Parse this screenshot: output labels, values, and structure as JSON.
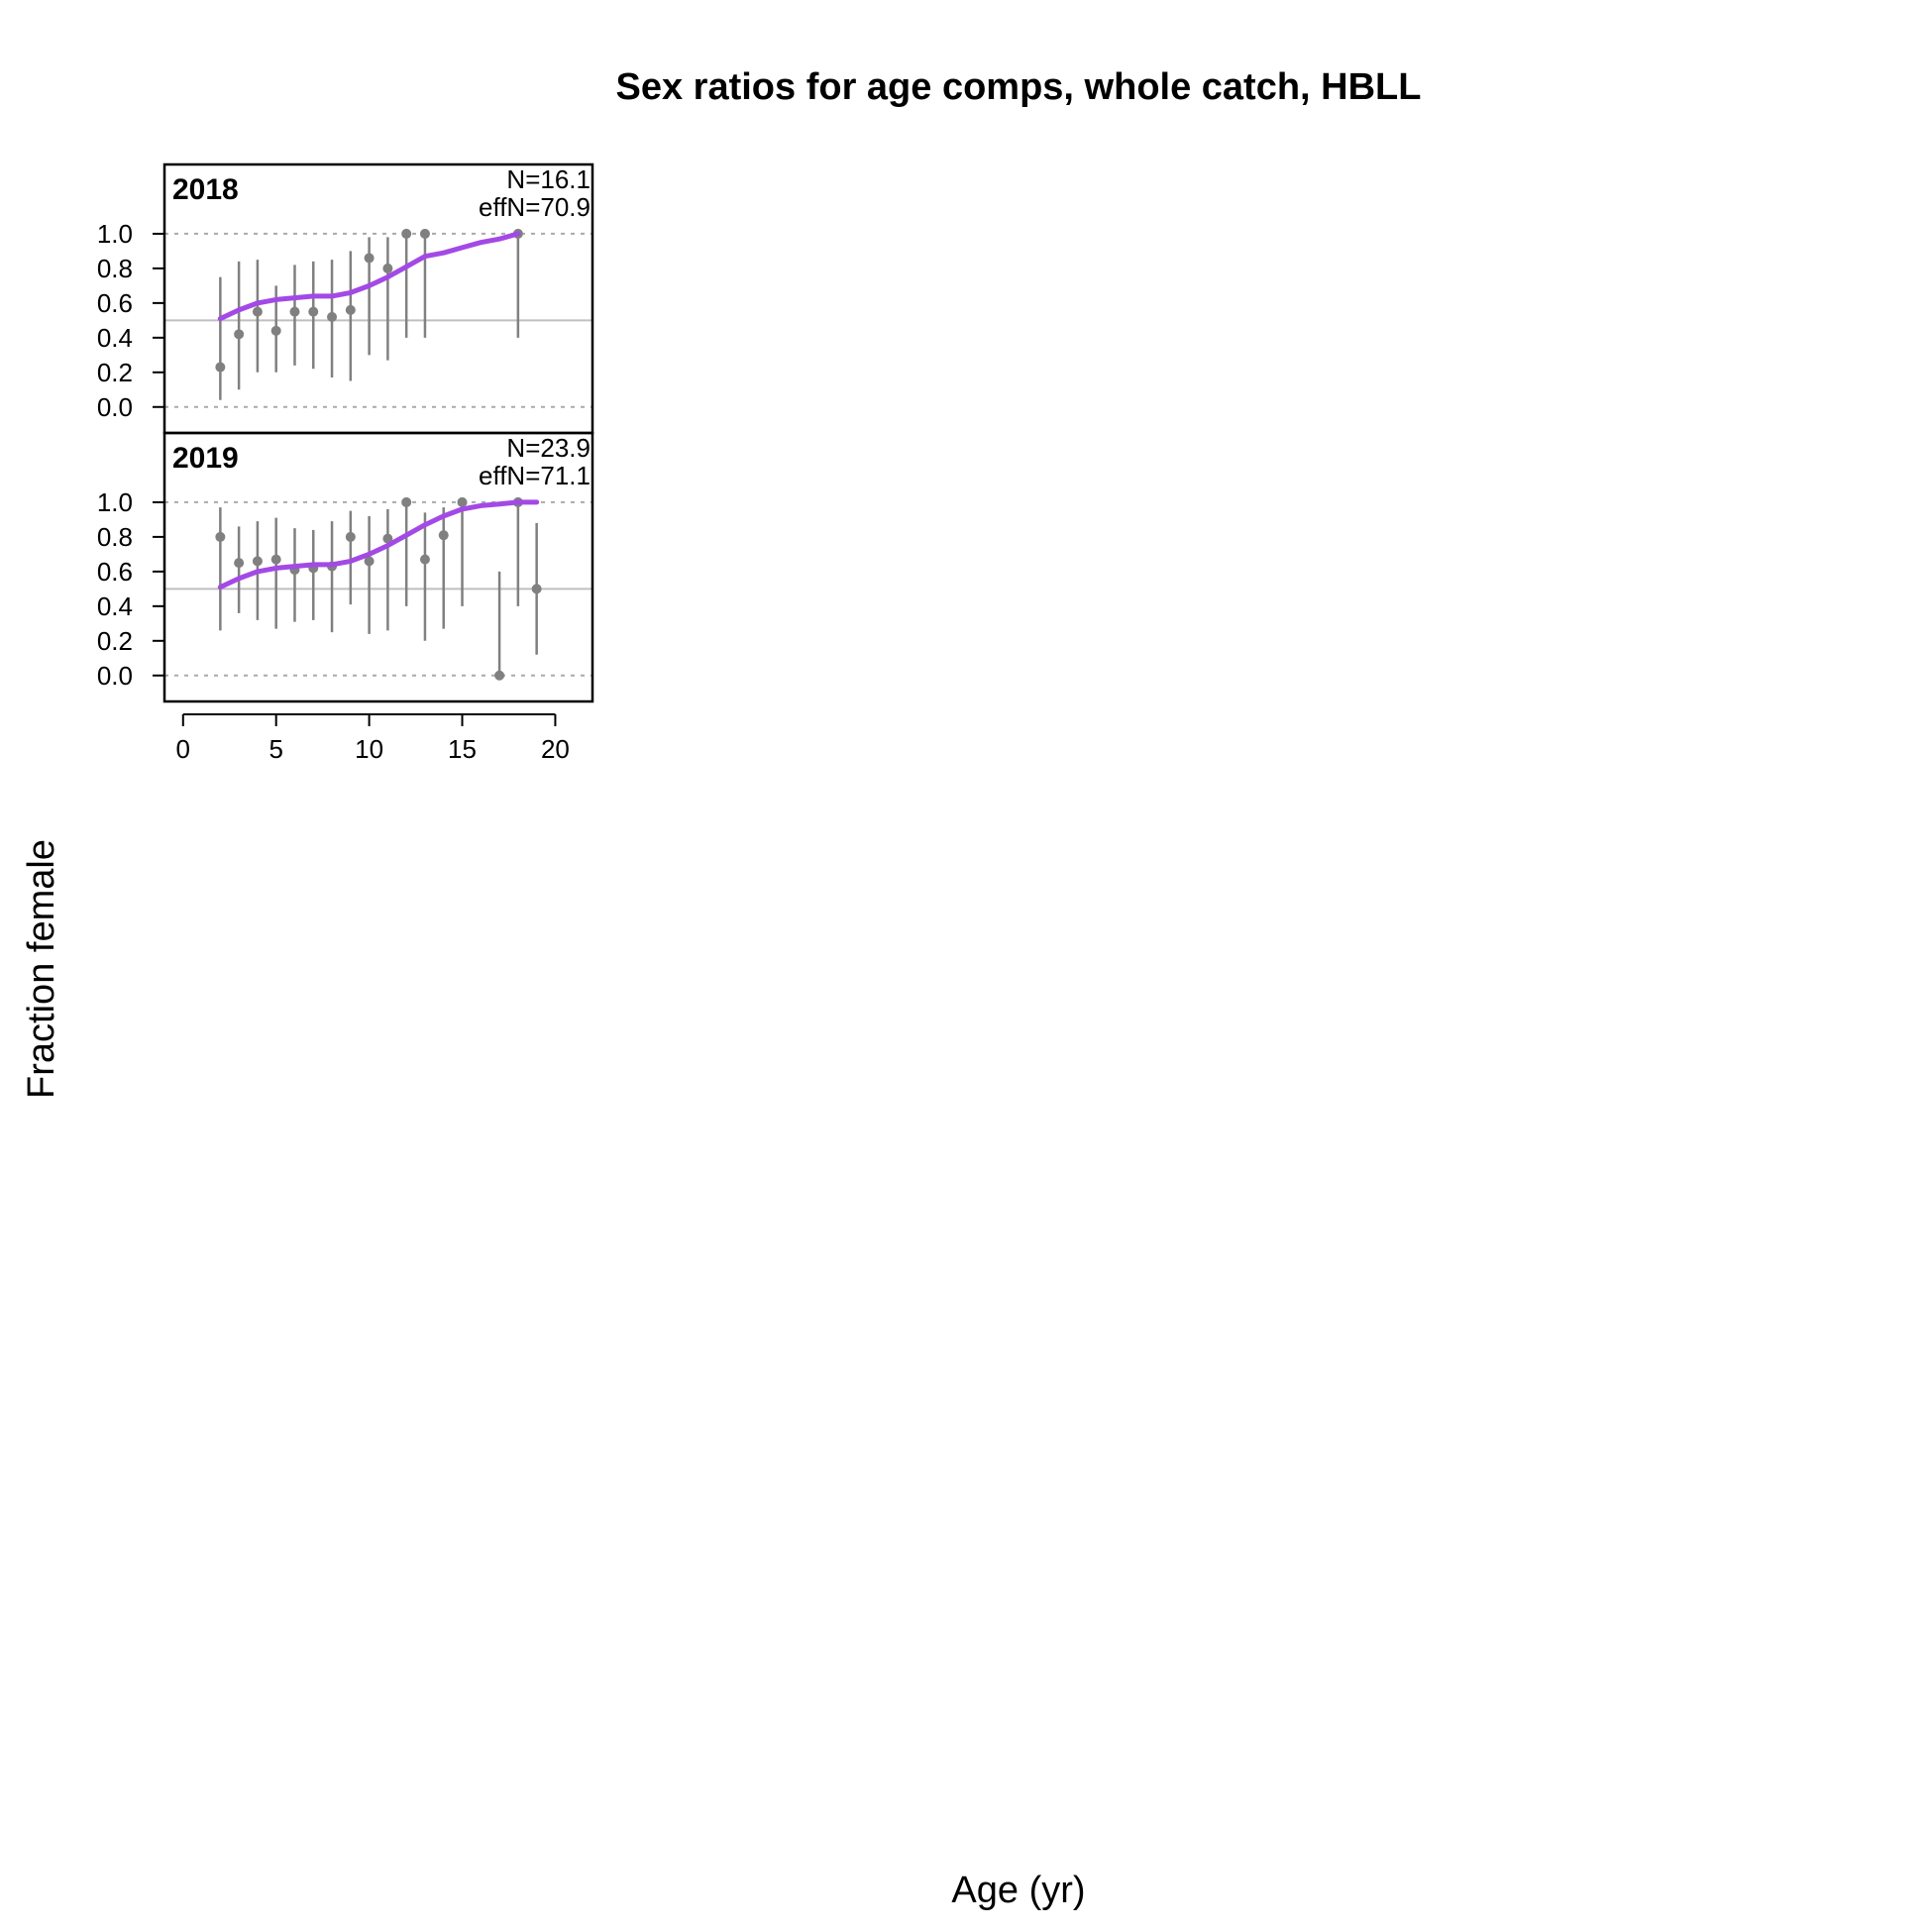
{
  "chart_data": {
    "type": "scatter",
    "title": "Sex ratios for age comps, whole catch, HBLL",
    "xlabel": "Age (yr)",
    "ylabel": "Fraction female",
    "xlim": [
      -1,
      22
    ],
    "ylim": [
      -0.15,
      1.4
    ],
    "x_ticks": [
      "0",
      "5",
      "10",
      "15",
      "20"
    ],
    "y_ticks": [
      "0.0",
      "0.2",
      "0.4",
      "0.6",
      "0.8",
      "1.0"
    ],
    "colors": {
      "observed": "#808080",
      "expected": "#a349e6",
      "reference": "#bfbfbf"
    },
    "panels": [
      {
        "year": "2018",
        "n_label": "N=16.1",
        "effn_label": "effN=70.9",
        "observed": [
          {
            "age": 2,
            "value": 0.23,
            "lower": 0.04,
            "upper": 0.75
          },
          {
            "age": 3,
            "value": 0.42,
            "lower": 0.1,
            "upper": 0.84
          },
          {
            "age": 4,
            "value": 0.55,
            "lower": 0.2,
            "upper": 0.85
          },
          {
            "age": 5,
            "value": 0.44,
            "lower": 0.2,
            "upper": 0.7
          },
          {
            "age": 6,
            "value": 0.55,
            "lower": 0.24,
            "upper": 0.82
          },
          {
            "age": 7,
            "value": 0.55,
            "lower": 0.22,
            "upper": 0.84
          },
          {
            "age": 8,
            "value": 0.52,
            "lower": 0.17,
            "upper": 0.85
          },
          {
            "age": 9,
            "value": 0.56,
            "lower": 0.15,
            "upper": 0.9
          },
          {
            "age": 10,
            "value": 0.86,
            "lower": 0.3,
            "upper": 0.98
          },
          {
            "age": 11,
            "value": 0.8,
            "lower": 0.27,
            "upper": 0.98
          },
          {
            "age": 12,
            "value": 1.0,
            "lower": 0.4,
            "upper": 1.0
          },
          {
            "age": 13,
            "value": 1.0,
            "lower": 0.4,
            "upper": 1.0
          },
          {
            "age": 18,
            "value": 1.0,
            "lower": 0.4,
            "upper": 1.0
          }
        ],
        "expected": {
          "ages": [
            2,
            3,
            4,
            5,
            6,
            7,
            8,
            9,
            10,
            11,
            12,
            13,
            14,
            15,
            16,
            17,
            18
          ],
          "values": [
            0.51,
            0.56,
            0.6,
            0.62,
            0.63,
            0.64,
            0.64,
            0.66,
            0.7,
            0.75,
            0.81,
            0.87,
            0.89,
            0.92,
            0.95,
            0.97,
            1.0
          ]
        }
      },
      {
        "year": "2019",
        "n_label": "N=23.9",
        "effn_label": "effN=71.1",
        "observed": [
          {
            "age": 2,
            "value": 0.8,
            "lower": 0.26,
            "upper": 0.97
          },
          {
            "age": 3,
            "value": 0.65,
            "lower": 0.36,
            "upper": 0.86
          },
          {
            "age": 4,
            "value": 0.66,
            "lower": 0.32,
            "upper": 0.89
          },
          {
            "age": 5,
            "value": 0.67,
            "lower": 0.27,
            "upper": 0.91
          },
          {
            "age": 6,
            "value": 0.61,
            "lower": 0.31,
            "upper": 0.85
          },
          {
            "age": 7,
            "value": 0.62,
            "lower": 0.32,
            "upper": 0.84
          },
          {
            "age": 8,
            "value": 0.63,
            "lower": 0.25,
            "upper": 0.89
          },
          {
            "age": 9,
            "value": 0.8,
            "lower": 0.41,
            "upper": 0.95
          },
          {
            "age": 10,
            "value": 0.66,
            "lower": 0.24,
            "upper": 0.92
          },
          {
            "age": 11,
            "value": 0.79,
            "lower": 0.26,
            "upper": 0.96
          },
          {
            "age": 12,
            "value": 1.0,
            "lower": 0.4,
            "upper": 1.0
          },
          {
            "age": 13,
            "value": 0.67,
            "lower": 0.2,
            "upper": 0.94
          },
          {
            "age": 14,
            "value": 0.81,
            "lower": 0.27,
            "upper": 0.97
          },
          {
            "age": 15,
            "value": 1.0,
            "lower": 0.4,
            "upper": 1.0
          },
          {
            "age": 17,
            "value": 0.0,
            "lower": 0.0,
            "upper": 0.6
          },
          {
            "age": 18,
            "value": 1.0,
            "lower": 0.4,
            "upper": 1.0
          },
          {
            "age": 19,
            "value": 0.5,
            "lower": 0.12,
            "upper": 0.88
          }
        ],
        "expected": {
          "ages": [
            2,
            3,
            4,
            5,
            6,
            7,
            8,
            9,
            10,
            11,
            12,
            13,
            14,
            15,
            16,
            17,
            18,
            19
          ],
          "values": [
            0.51,
            0.56,
            0.6,
            0.62,
            0.63,
            0.64,
            0.64,
            0.66,
            0.7,
            0.75,
            0.81,
            0.87,
            0.92,
            0.96,
            0.98,
            0.99,
            1.0,
            1.0
          ]
        }
      }
    ]
  }
}
